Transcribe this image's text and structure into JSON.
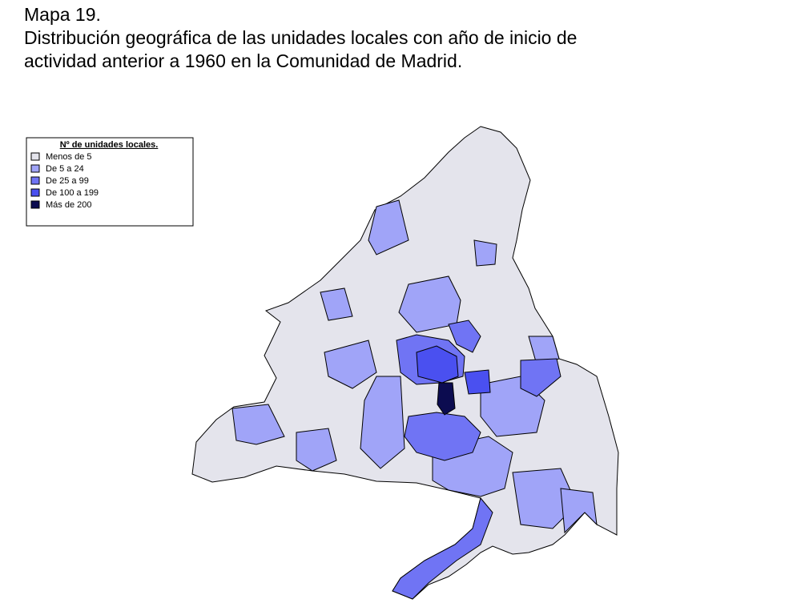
{
  "title": {
    "number": "Mapa 19.",
    "lines": [
      "Distribución geográfica de las unidades locales con año de inicio de",
      "actividad anterior a 1960 en la Comunidad de Madrid."
    ]
  },
  "legend": {
    "title": "Nº de unidades locales.",
    "items": [
      {
        "label": "Menos de 5",
        "color": "#e4e4ec"
      },
      {
        "label": "De 5 a 24",
        "color": "#a0a4f8"
      },
      {
        "label": "De 25 a 99",
        "color": "#7074f4"
      },
      {
        "label": "De 100 a 199",
        "color": "#4a50f0"
      },
      {
        "label": "Más de 200",
        "color": "#0c0c50"
      }
    ]
  }
}
